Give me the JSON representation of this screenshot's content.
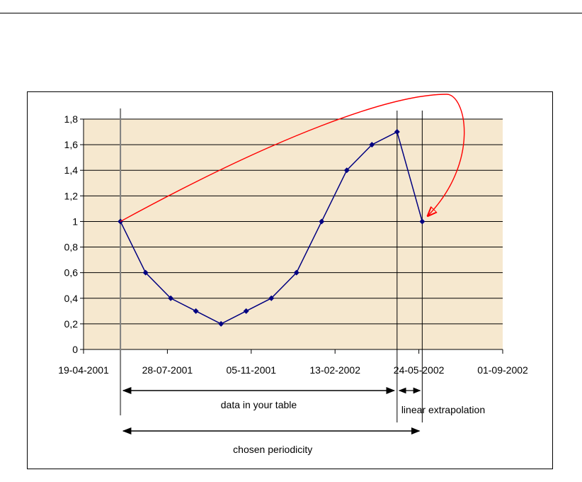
{
  "chart_data": {
    "type": "line",
    "title": "",
    "xlabel": "",
    "ylabel": "",
    "ylim": [
      0,
      1.8
    ],
    "y_ticks": [
      "0",
      "0,2",
      "0,4",
      "0,6",
      "0,8",
      "1",
      "1,2",
      "1,4",
      "1,6",
      "1,8"
    ],
    "x_range": [
      "2001-04-19",
      "2002-09-01"
    ],
    "x_ticks": [
      "19-04-2001",
      "28-07-2001",
      "05-11-2001",
      "13-02-2002",
      "24-05-2002",
      "01-09-2002"
    ],
    "grid": "horizontal",
    "plot_background": "#f6e8cf",
    "colors": {
      "series": "#000080",
      "arrow": "#ff0000",
      "grid": "#000000"
    },
    "series": [
      {
        "x": [
          "2001-06-02",
          "2001-07-02",
          "2001-08-01",
          "2001-08-31",
          "2001-09-30",
          "2001-10-30",
          "2001-11-29",
          "2001-12-29",
          "2002-01-28",
          "2002-02-27",
          "2002-03-29",
          "2002-04-28",
          "2002-05-28"
        ],
        "values": [
          1,
          0.6,
          0.4,
          0.3,
          0.2,
          0.3,
          0.4,
          0.6,
          1,
          1.4,
          1.6,
          1.7,
          1
        ]
      }
    ],
    "annotations": {
      "data_range": "data in your table",
      "extrapolation": "linear extrapolation",
      "periodicity": "chosen periodicity"
    }
  }
}
